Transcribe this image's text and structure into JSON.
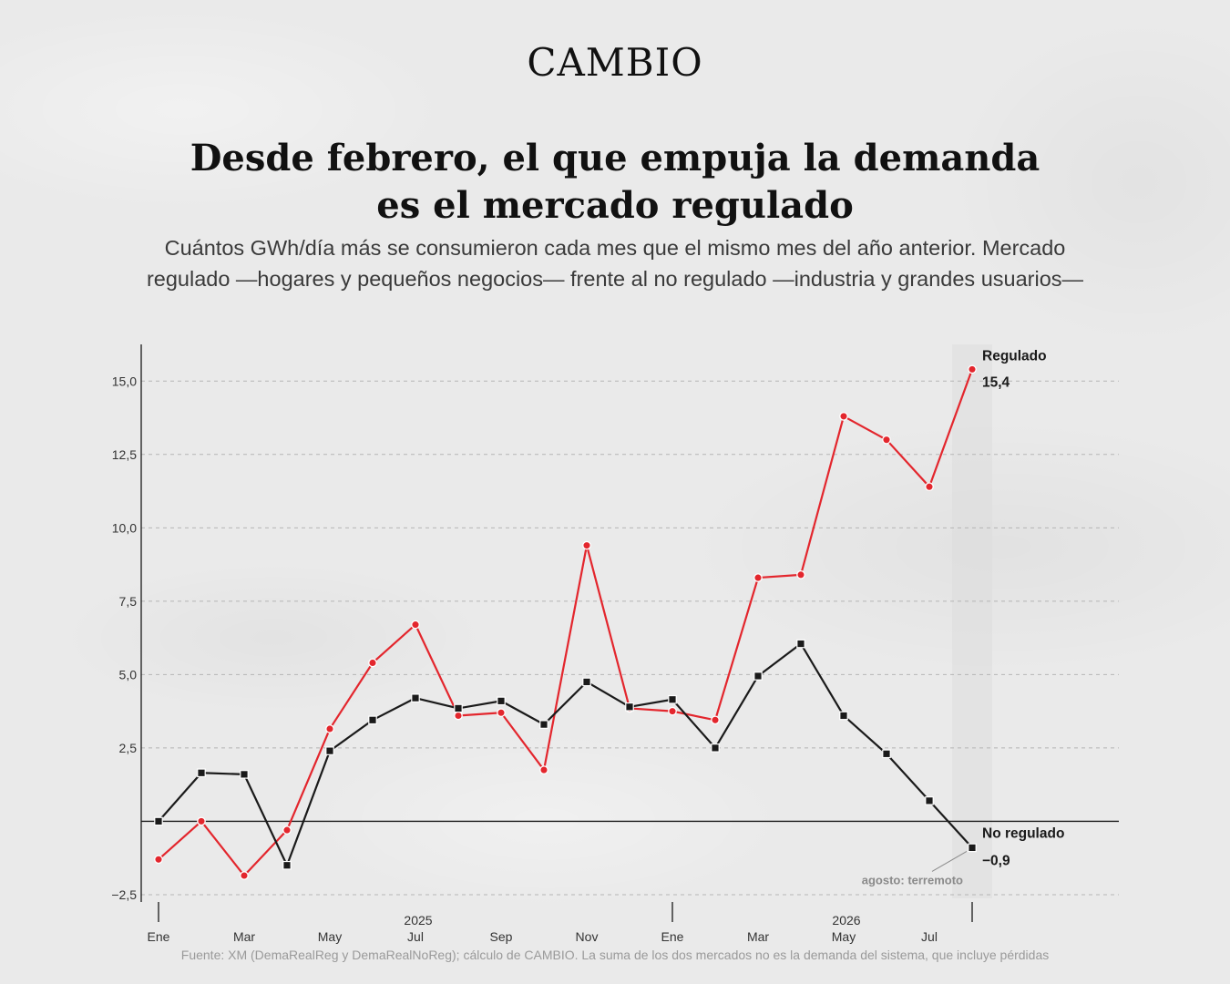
{
  "brand": "CAMBIO",
  "title_line1": "Desde febrero, el que empuja la demanda",
  "title_line2": "es el mercado regulado",
  "subtitle_line1": "Cuántos GWh/día más se consumieron cada mes que el mismo mes del año anterior. Mercado",
  "subtitle_line2": "regulado —hogares y pequeños negocios— frente al no regulado —industria y grandes usuarios—",
  "footer": "Fuente: XM (DemaRealReg y DemaRealNoReg); cálculo de CAMBIO. La suma de los dos mercados no es la demanda del sistema, que incluye pérdidas",
  "colors": {
    "regulado": "#e3262d",
    "no_regulado": "#1a1a1a",
    "grid": "#b5b5b5",
    "highlight_band": "#dcdcdc",
    "annotation": "#8a8a8a"
  },
  "chart_data": {
    "type": "line",
    "x": [
      "2025-01",
      "2025-02",
      "2025-03",
      "2025-04",
      "2025-05",
      "2025-06",
      "2025-07",
      "2025-08",
      "2025-09",
      "2025-10",
      "2025-11",
      "2025-12",
      "2026-01",
      "2026-02",
      "2026-03",
      "2026-04",
      "2026-05",
      "2026-06",
      "2026-07",
      "2026-08"
    ],
    "tick_labels": [
      {
        "x": "2025-01",
        "label": "Ene"
      },
      {
        "x": "2025-03",
        "label": "Mar"
      },
      {
        "x": "2025-05",
        "label": "May"
      },
      {
        "x": "2025-07",
        "label": "Jul"
      },
      {
        "x": "2025-09",
        "label": "Sep"
      },
      {
        "x": "2025-11",
        "label": "Nov"
      },
      {
        "x": "2026-01",
        "label": "Ene"
      },
      {
        "x": "2026-03",
        "label": "Mar"
      },
      {
        "x": "2026-05",
        "label": "May"
      },
      {
        "x": "2026-07",
        "label": "Jul"
      }
    ],
    "year_labels": [
      {
        "x": "2025-07",
        "label": "2025"
      },
      {
        "x": "2026-05",
        "label": "2026"
      }
    ],
    "year_ticks": [
      "2025-01",
      "2026-01",
      "2026-08"
    ],
    "yticks": [
      {
        "value": -2.5,
        "label": "−2,5"
      },
      {
        "value": 2.5,
        "label": "2,5"
      },
      {
        "value": 5.0,
        "label": "5,0"
      },
      {
        "value": 7.5,
        "label": "7,5"
      },
      {
        "value": 10.0,
        "label": "10,0"
      },
      {
        "value": 12.5,
        "label": "12,5"
      },
      {
        "value": 15.0,
        "label": "15,0"
      }
    ],
    "ylim": [
      -2.75,
      16.25
    ],
    "grid": true,
    "series": [
      {
        "name": "Regulado",
        "marker": "circle",
        "values": [
          -1.3,
          0.0,
          -1.85,
          -0.3,
          3.15,
          5.4,
          6.7,
          3.6,
          3.7,
          1.75,
          9.4,
          3.85,
          3.75,
          3.45,
          8.3,
          8.4,
          13.8,
          13.0,
          11.4,
          15.4
        ],
        "end_label": "15,4"
      },
      {
        "name": "No regulado",
        "marker": "square",
        "values": [
          0.0,
          1.65,
          1.6,
          -1.5,
          2.4,
          3.45,
          4.2,
          3.85,
          4.1,
          3.3,
          4.75,
          3.9,
          4.15,
          2.5,
          4.95,
          6.05,
          3.6,
          2.3,
          0.7,
          -0.9
        ],
        "end_label": "−0,9"
      }
    ],
    "highlight": {
      "x": "2026-08"
    },
    "annotation": {
      "x": "2026-08",
      "text": "agosto: terremoto"
    }
  }
}
